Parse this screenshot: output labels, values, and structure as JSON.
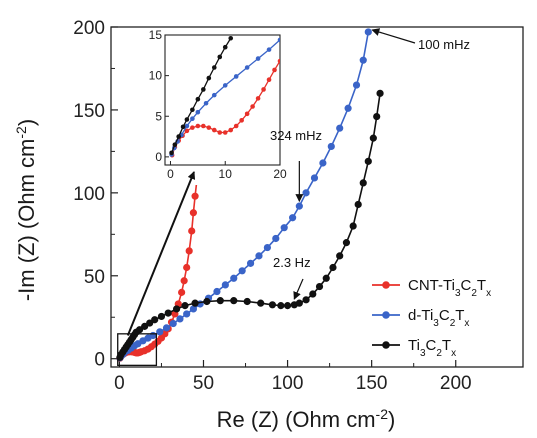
{
  "chart_data": {
    "type": "scatter",
    "xlabel": {
      "pre": "Re (Z) (Ohm cm",
      "sup": "-2",
      "post": ")"
    },
    "ylabel": {
      "pre": "-Im (Z) (Ohm cm",
      "sup": "-2",
      "post": ")"
    },
    "xlim": [
      -5,
      240
    ],
    "ylim": [
      -5,
      200
    ],
    "xticks": [
      0,
      50,
      100,
      150,
      200
    ],
    "yticks": [
      0,
      50,
      100,
      150,
      200
    ],
    "series": [
      {
        "name": "CNT-Ti3C2Tx",
        "legend": {
          "parts": [
            [
              "CNT-Ti",
              ""
            ],
            [
              "3",
              "sub"
            ],
            [
              "C",
              ""
            ],
            [
              "2",
              "sub"
            ],
            [
              "T",
              ""
            ],
            [
              "x",
              "sub"
            ]
          ]
        },
        "color": "#e8312a",
        "points": [
          [
            0.3,
            0.3
          ],
          [
            1,
            1.5
          ],
          [
            2,
            2.5
          ],
          [
            3,
            3.2
          ],
          [
            4,
            3.8
          ],
          [
            5,
            4.1
          ],
          [
            6,
            4.2
          ],
          [
            7,
            4.2
          ],
          [
            8,
            4.1
          ],
          [
            9,
            3.8
          ],
          [
            10,
            3.5
          ],
          [
            11,
            3.5
          ],
          [
            12,
            3.8
          ],
          [
            13,
            4.2
          ],
          [
            15,
            4.8
          ],
          [
            17,
            5.8
          ],
          [
            19,
            7.2
          ],
          [
            21,
            8.8
          ],
          [
            23,
            10.5
          ],
          [
            25,
            12.5
          ],
          [
            27,
            15
          ],
          [
            29,
            18
          ],
          [
            31,
            22
          ],
          [
            33,
            27
          ],
          [
            35,
            33
          ],
          [
            37,
            40
          ],
          [
            38.5,
            47
          ],
          [
            40,
            55
          ],
          [
            41.5,
            65
          ],
          [
            43,
            77
          ],
          [
            44,
            88
          ],
          [
            45,
            98
          ],
          [
            46,
            107
          ]
        ]
      },
      {
        "name": "d-Ti3C2Tx",
        "legend": {
          "parts": [
            [
              "d-Ti",
              ""
            ],
            [
              "3",
              "sub"
            ],
            [
              "C",
              ""
            ],
            [
              "2",
              "sub"
            ],
            [
              "T",
              ""
            ],
            [
              "x",
              "sub"
            ]
          ]
        },
        "color": "#3a64c8",
        "points": [
          [
            0.3,
            0.5
          ],
          [
            1,
            1.5
          ],
          [
            2,
            2.6
          ],
          [
            3,
            3.6
          ],
          [
            5,
            5
          ],
          [
            7,
            6.4
          ],
          [
            9,
            7.8
          ],
          [
            11,
            9
          ],
          [
            14,
            10.8
          ],
          [
            17,
            12.4
          ],
          [
            20,
            14
          ],
          [
            24,
            16.2
          ],
          [
            28,
            18.6
          ],
          [
            32,
            21.2
          ],
          [
            36,
            24
          ],
          [
            40,
            27
          ],
          [
            44,
            30
          ],
          [
            48,
            33
          ],
          [
            53,
            36.5
          ],
          [
            58,
            40.5
          ],
          [
            63,
            44.5
          ],
          [
            68,
            48.5
          ],
          [
            73,
            53
          ],
          [
            78,
            57.5
          ],
          [
            83,
            62
          ],
          [
            88,
            67
          ],
          [
            93,
            72.5
          ],
          [
            98,
            79
          ],
          [
            103,
            85
          ],
          [
            107,
            92
          ],
          [
            111,
            100
          ],
          [
            116,
            109
          ],
          [
            121,
            118
          ],
          [
            126,
            128
          ],
          [
            131,
            139
          ],
          [
            136,
            151
          ],
          [
            141,
            165
          ],
          [
            145,
            180
          ],
          [
            148,
            197
          ]
        ]
      },
      {
        "name": "Ti3C2Tx",
        "legend": {
          "parts": [
            [
              "Ti",
              ""
            ],
            [
              "3",
              "sub"
            ],
            [
              "C",
              ""
            ],
            [
              "2",
              "sub"
            ],
            [
              "T",
              ""
            ],
            [
              "x",
              "sub"
            ]
          ]
        },
        "color": "#111111",
        "points": [
          [
            0.3,
            0.8
          ],
          [
            1,
            2.5
          ],
          [
            2,
            4
          ],
          [
            3,
            5.5
          ],
          [
            4,
            7
          ],
          [
            5,
            8.5
          ],
          [
            6,
            10
          ],
          [
            7,
            11.5
          ],
          [
            8,
            13
          ],
          [
            9,
            14.5
          ],
          [
            10,
            16
          ],
          [
            12,
            17.5
          ],
          [
            15,
            19.5
          ],
          [
            18,
            21.5
          ],
          [
            21,
            23.5
          ],
          [
            25,
            25.5
          ],
          [
            29,
            27.5
          ],
          [
            34,
            30
          ],
          [
            39,
            32
          ],
          [
            45,
            33.5
          ],
          [
            52,
            34.5
          ],
          [
            60,
            35
          ],
          [
            68,
            35
          ],
          [
            76,
            34.5
          ],
          [
            84,
            33.5
          ],
          [
            91,
            32.5
          ],
          [
            96,
            32
          ],
          [
            100,
            32
          ],
          [
            104,
            32.5
          ],
          [
            107,
            33.5
          ],
          [
            111,
            35.5
          ],
          [
            115,
            39
          ],
          [
            119,
            43.5
          ],
          [
            123,
            48.5
          ],
          [
            127,
            55
          ],
          [
            131,
            62
          ],
          [
            135,
            70
          ],
          [
            139,
            80
          ],
          [
            142,
            93
          ],
          [
            145,
            106
          ],
          [
            148,
            119
          ],
          [
            151,
            133
          ],
          [
            153,
            146
          ],
          [
            155,
            160
          ]
        ]
      }
    ],
    "inset": {
      "xlim": [
        -1,
        20
      ],
      "ylim": [
        -1,
        15
      ],
      "xticks": [
        0,
        10,
        20
      ],
      "yticks": [
        0,
        5,
        10,
        15
      ],
      "series": [
        {
          "name": "CNT-Ti3C2Tx",
          "color": "#e8312a",
          "points": [
            [
              0.3,
              0.2
            ],
            [
              0.8,
              1.2
            ],
            [
              1.5,
              2
            ],
            [
              2.2,
              2.6
            ],
            [
              3,
              3.2
            ],
            [
              4,
              3.6
            ],
            [
              5,
              3.8
            ],
            [
              6,
              3.8
            ],
            [
              7,
              3.6
            ],
            [
              8,
              3.3
            ],
            [
              9,
              3
            ],
            [
              10,
              3
            ],
            [
              11,
              3.3
            ],
            [
              12,
              3.8
            ],
            [
              13,
              4.5
            ],
            [
              14,
              5.3
            ],
            [
              15,
              6.2
            ],
            [
              16,
              7.2
            ],
            [
              17,
              8.3
            ],
            [
              18,
              9.5
            ],
            [
              19,
              10.7
            ],
            [
              20,
              11.8
            ]
          ]
        },
        {
          "name": "d-Ti3C2Tx",
          "color": "#3a64c8",
          "points": [
            [
              0.2,
              0.3
            ],
            [
              0.7,
              1.1
            ],
            [
              1.3,
              1.9
            ],
            [
              2,
              2.7
            ],
            [
              3,
              3.8
            ],
            [
              4,
              4.7
            ],
            [
              5,
              5.5
            ],
            [
              6.5,
              6.6
            ],
            [
              8,
              7.6
            ],
            [
              10,
              8.8
            ],
            [
              12,
              9.9
            ],
            [
              14,
              11
            ],
            [
              16,
              12.1
            ],
            [
              18,
              13.2
            ],
            [
              20,
              14.4
            ]
          ]
        },
        {
          "name": "Ti3C2Tx",
          "color": "#111111",
          "points": [
            [
              0.2,
              0.5
            ],
            [
              0.8,
              1.5
            ],
            [
              1.5,
              2.5
            ],
            [
              2.3,
              3.7
            ],
            [
              3,
              4.6
            ],
            [
              4,
              5.8
            ],
            [
              5,
              7.1
            ],
            [
              6,
              8.3
            ],
            [
              7,
              9.7
            ],
            [
              8,
              11
            ],
            [
              9,
              12.3
            ],
            [
              10,
              13.5
            ],
            [
              11,
              14.6
            ]
          ]
        }
      ]
    },
    "annotations": [
      {
        "text": "100 mHz",
        "arrow_to": [
          148,
          197
        ]
      },
      {
        "text": "324 mHz",
        "arrow_to": [
          107,
          92
        ]
      },
      {
        "text": "2.3 Hz",
        "arrow_to": [
          104,
          33
        ]
      }
    ]
  }
}
